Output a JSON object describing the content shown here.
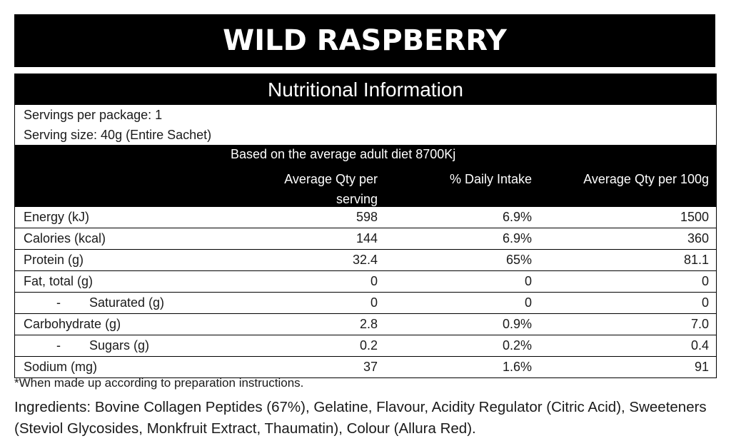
{
  "title": "WILD RASPBERRY",
  "nutrition": {
    "header": "Nutritional Information",
    "servings_per_package": "Servings per package: 1",
    "serving_size": "Serving size: 40g (Entire Sachet)",
    "diet_basis": "Based on the average adult diet 8700Kj",
    "columns": {
      "per_serving_line1": "Average Qty per",
      "per_serving_line2": "serving",
      "daily_intake": "% Daily Intake",
      "per_100g": "Average Qty per 100g"
    },
    "rows": [
      {
        "label": "Energy (kJ)",
        "per_serving": "598",
        "daily_intake": "6.9%",
        "per_100g": "1500"
      },
      {
        "label": "Calories (kcal)",
        "per_serving": "144",
        "daily_intake": "6.9%",
        "per_100g": "360"
      },
      {
        "label": "Protein (g)",
        "per_serving": "32.4",
        "daily_intake": "65%",
        "per_100g": "81.1"
      },
      {
        "label": "Fat, total (g)",
        "per_serving": "0",
        "daily_intake": "0",
        "per_100g": "0"
      },
      {
        "label": "Saturated (g)",
        "per_serving": "0",
        "daily_intake": "0",
        "per_100g": "0"
      },
      {
        "label": "Carbohydrate (g)",
        "per_serving": "2.8",
        "daily_intake": "0.9%",
        "per_100g": "7.0"
      },
      {
        "label": "Sugars (g)",
        "per_serving": "0.2",
        "daily_intake": "0.2%",
        "per_100g": "0.4"
      },
      {
        "label": "Sodium (mg)",
        "per_serving": "37",
        "daily_intake": "1.6%",
        "per_100g": "91"
      }
    ],
    "sub_dash": "-"
  },
  "footnote": "*When made up according to preparation instructions.",
  "ingredients": {
    "label": "Ingredients:",
    "text": " Bovine Collagen Peptides (67%), Gelatine, Flavour, Acidity Regulator (Citric Acid), Sweeteners (Steviol Glycosides, Monkfruit Extract, Thaumatin), Colour (Allura Red)."
  }
}
